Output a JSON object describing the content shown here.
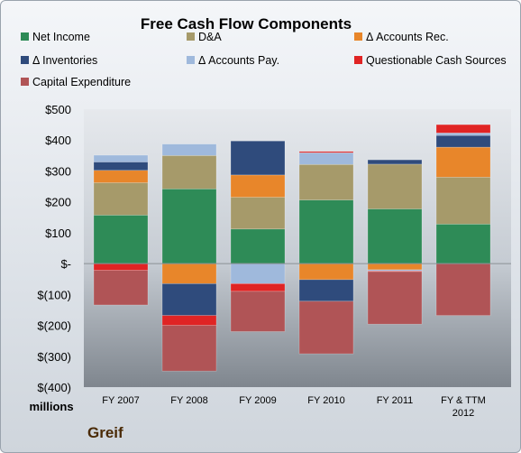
{
  "chart_data": {
    "type": "bar",
    "stacked": true,
    "title": "Free Cash Flow Components",
    "unit_label": "millions",
    "company": "Greif",
    "categories": [
      "FY 2007",
      "FY 2008",
      "FY 2009",
      "FY 2010",
      "FY 2011",
      "FY & TTM\n2012"
    ],
    "ylim": [
      -400,
      500
    ],
    "yticks": [
      500,
      400,
      300,
      200,
      100,
      0,
      -100,
      -200,
      -300,
      -400
    ],
    "ytick_labels": [
      "$500",
      "$400",
      "$300",
      "$200",
      "$100",
      "$-",
      "$(100)",
      "$(200)",
      "$(300)",
      "$(400)"
    ],
    "grid": false,
    "legend_position": "top",
    "series": [
      {
        "name": "Net Income",
        "color": "#2e8b57",
        "values": [
          157,
          242,
          112,
          206,
          177,
          128
        ]
      },
      {
        "name": "D&A",
        "color": "#a69a6a",
        "values": [
          105,
          108,
          103,
          115,
          145,
          152
        ]
      },
      {
        "name": "Δ Accounts Rec.",
        "color": "#e8862a",
        "values": [
          40,
          -65,
          72,
          -52,
          -20,
          97
        ]
      },
      {
        "name": "Δ Inventories",
        "color": "#2f4b7c",
        "values": [
          27,
          -103,
          110,
          -70,
          14,
          38
        ]
      },
      {
        "name": "Δ Accounts Pay.",
        "color": "#9fb9dc",
        "values": [
          22,
          37,
          -65,
          38,
          -4,
          8
        ]
      },
      {
        "name": "Questionable Cash Sources",
        "color": "#e02424",
        "values": [
          -22,
          -32,
          -25,
          4,
          -2,
          27
        ]
      },
      {
        "name": "Capital Expenditure",
        "color": "#b05456",
        "values": [
          -112,
          -148,
          -130,
          -170,
          -170,
          -168
        ]
      }
    ]
  }
}
